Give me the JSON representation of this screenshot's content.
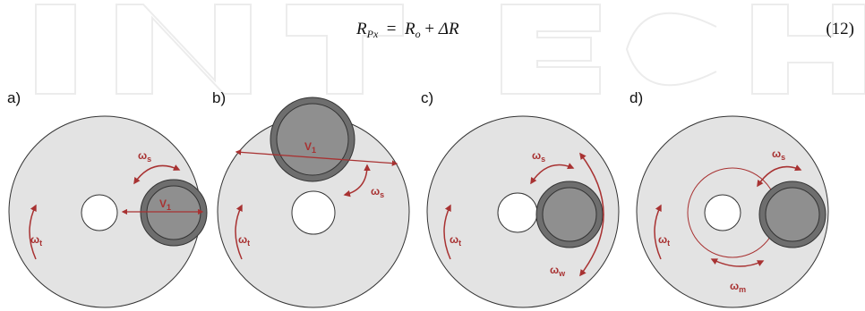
{
  "watermark": {
    "text": "INTECH"
  },
  "equation": {
    "lhs_symbol": "R",
    "lhs_subscript": "Px",
    "equals": "=",
    "term1_symbol": "R",
    "term1_subscript": "o",
    "plus": "+",
    "term2": "ΔR",
    "number": "(12)"
  },
  "figure": {
    "colors": {
      "disc": "#e3e3e3",
      "disc_stroke": "#333333",
      "planet_outer": "#6e6e6e",
      "planet_inner": "#8f8f8f",
      "arrow": "#a83232"
    },
    "panels": [
      {
        "label": "a)",
        "symbols": {
          "table": "ω",
          "table_sub": "t",
          "spin": "ω",
          "spin_sub": "s",
          "velocity": "V",
          "velocity_sub": "1"
        }
      },
      {
        "label": "b)",
        "symbols": {
          "table": "ω",
          "table_sub": "t",
          "spin": "ω",
          "spin_sub": "s",
          "velocity": "V",
          "velocity_sub": "1"
        }
      },
      {
        "label": "c)",
        "symbols": {
          "table": "ω",
          "table_sub": "t",
          "spin": "ω",
          "spin_sub": "s",
          "wobble": "ω",
          "wobble_sub": "w"
        }
      },
      {
        "label": "d)",
        "symbols": {
          "table": "ω",
          "table_sub": "t",
          "spin": "ω",
          "spin_sub": "s",
          "orbit": "ω",
          "orbit_sub": "m"
        }
      }
    ]
  }
}
